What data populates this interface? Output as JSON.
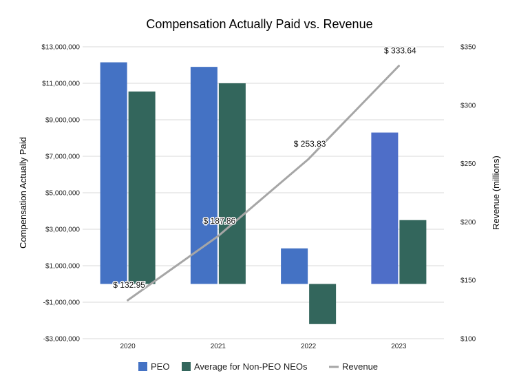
{
  "colors": {
    "peo": "#4472c4",
    "peo_2023": "#4e6ec8",
    "non_peo": "#33665c",
    "revenue": "#a6a6a6",
    "grid": "#d9d9d9"
  },
  "chart_data": {
    "type": "bar",
    "title": "Compensation Actually Paid vs. Revenue",
    "xlabel": "",
    "ylabel": "Compensation Actually Paid",
    "y2label": "Revenue (millions)",
    "categories": [
      "2020",
      "2021",
      "2022",
      "2023"
    ],
    "ylim": [
      -3000000,
      13000000
    ],
    "y_ticks": [
      -3000000,
      -1000000,
      1000000,
      3000000,
      5000000,
      7000000,
      9000000,
      11000000,
      13000000
    ],
    "y_tick_labels": [
      "-$3,000,000",
      "-$1,000,000",
      "$1,000,000",
      "$3,000,000",
      "$5,000,000",
      "$7,000,000",
      "$9,000,000",
      "$11,000,000",
      "$13,000,000"
    ],
    "y2lim": [
      100,
      350
    ],
    "y2_ticks": [
      100,
      150,
      200,
      250,
      300,
      350
    ],
    "y2_tick_labels": [
      "$100",
      "$150",
      "$200",
      "$250",
      "$300",
      "$350"
    ],
    "grid": true,
    "legend_position": "bottom",
    "series": [
      {
        "name": "PEO",
        "type": "bar",
        "axis": "left",
        "values": [
          12150000,
          11900000,
          1950000,
          8300000
        ]
      },
      {
        "name": "Average for Non-PEO NEOs",
        "type": "bar",
        "axis": "left",
        "values": [
          10550000,
          11000000,
          -2200000,
          3500000
        ]
      },
      {
        "name": "Revenue",
        "type": "line",
        "axis": "right",
        "values": [
          132.95,
          187.86,
          253.83,
          333.64
        ],
        "data_labels": [
          "$ 132.95",
          "$ 187.86",
          "$ 253.83",
          "$ 333.64"
        ]
      }
    ]
  }
}
